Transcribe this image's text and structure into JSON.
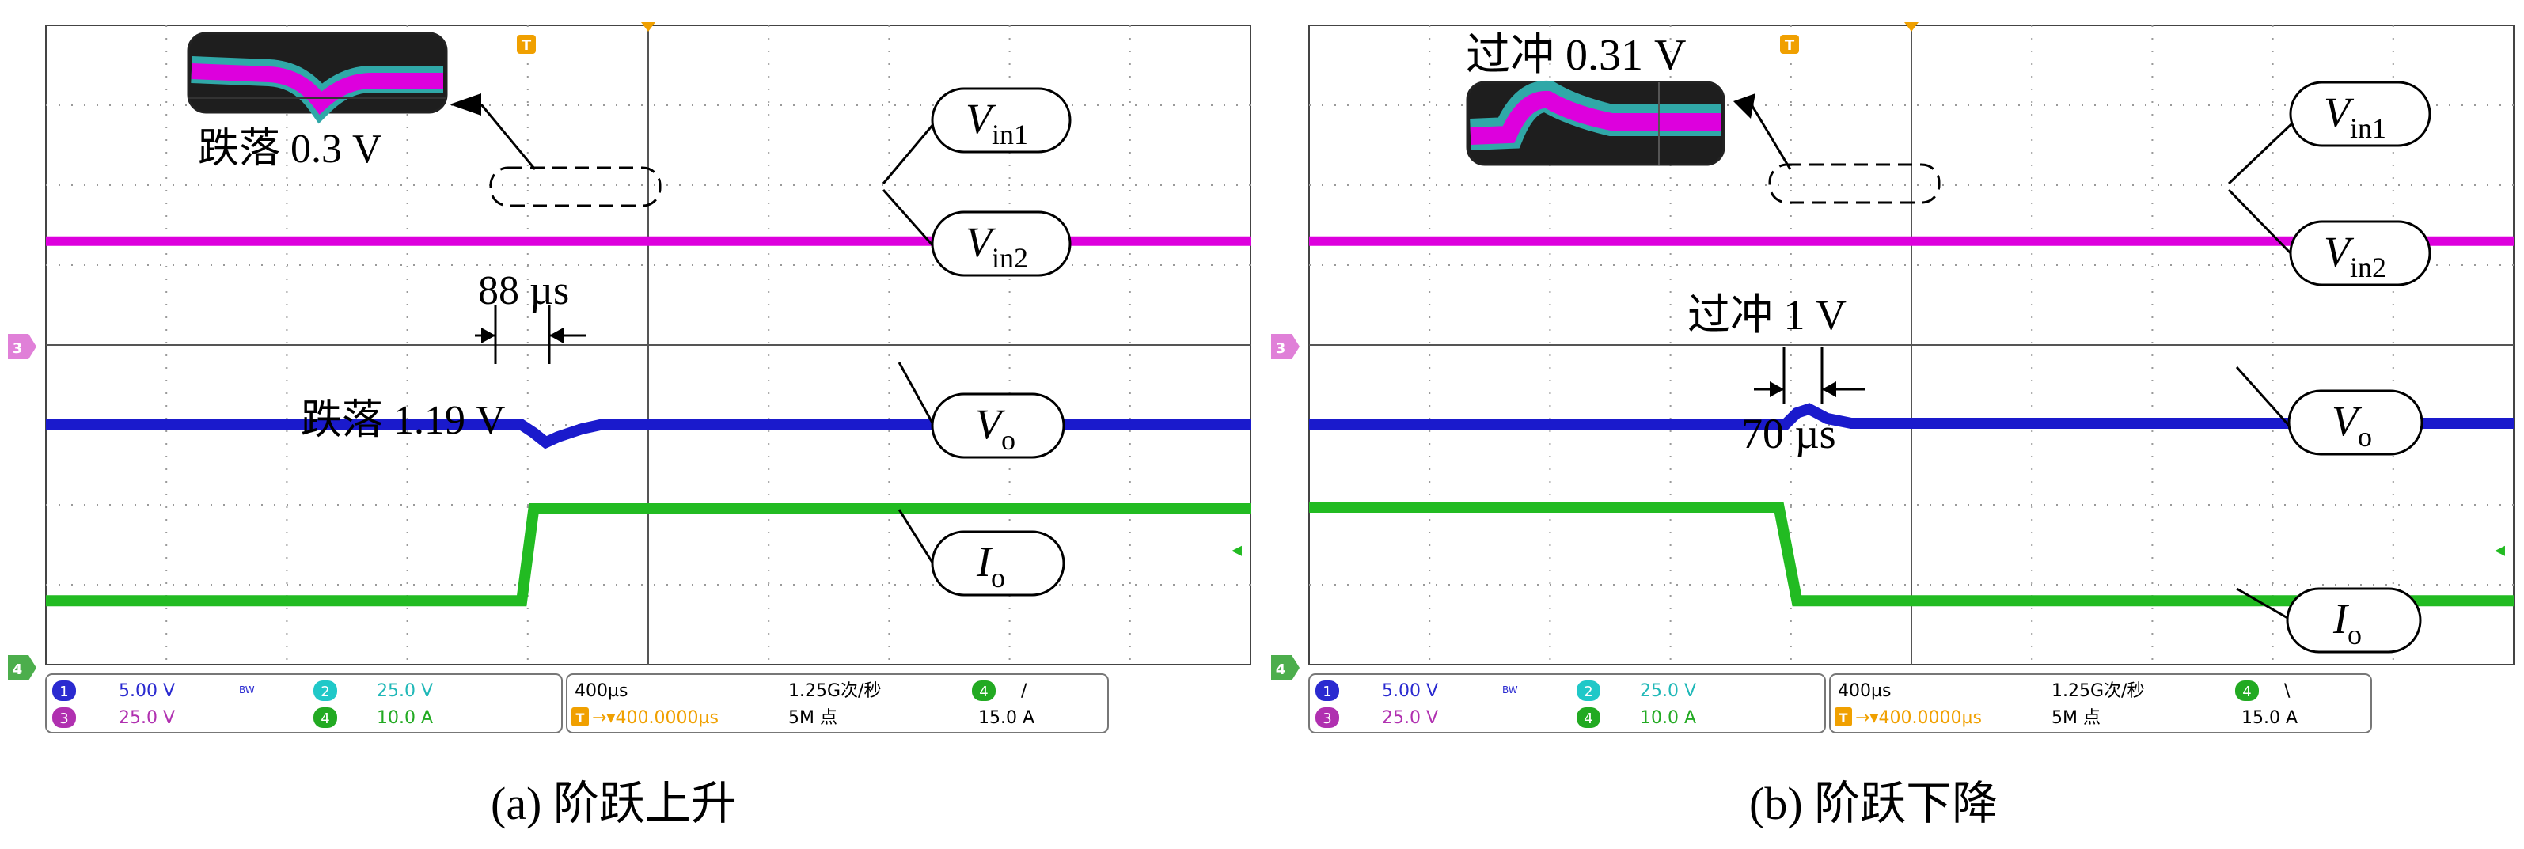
{
  "chart_data": [
    {
      "type": "line",
      "title": "",
      "caption": "(a) 阶跃上升",
      "x_unit": "µs",
      "time_per_div_us": 400,
      "divisions": {
        "x": 10,
        "y": 8
      },
      "grid": true,
      "series": [
        {
          "name": "Vin1",
          "channel": 3,
          "color": "#dd00dd",
          "volts_per_div": 25.0,
          "points_div": [
            [
              0,
              5.3
            ],
            [
              10,
              5.3
            ]
          ]
        },
        {
          "name": "Vin2",
          "channel": 3,
          "color": "#dd00dd",
          "volts_per_div": 25.0,
          "points_div": [
            [
              0,
              5.29
            ],
            [
              10,
              5.29
            ]
          ]
        },
        {
          "name": "Vo",
          "channel": 1,
          "color": "#1a1acc",
          "volts_per_div": 5.0,
          "points_div": [
            [
              0,
              3.0
            ],
            [
              3.95,
              3.0
            ],
            [
              4.05,
              2.9
            ],
            [
              4.15,
              2.78
            ],
            [
              4.25,
              2.85
            ],
            [
              4.45,
              2.95
            ],
            [
              4.6,
              3.0
            ],
            [
              10,
              3.0
            ]
          ]
        },
        {
          "name": "Io",
          "channel": 4,
          "color": "#22bb22",
          "amps_per_div": 10.0,
          "points_div": [
            [
              0,
              0.8
            ],
            [
              3.95,
              0.8
            ],
            [
              4.05,
              1.95
            ],
            [
              10,
              1.95
            ]
          ]
        }
      ],
      "labels": [
        {
          "base": "V",
          "sub": "in1"
        },
        {
          "base": "V",
          "sub": "in2"
        },
        {
          "base": "V",
          "sub": "o"
        },
        {
          "base": "I",
          "sub": "o"
        }
      ],
      "annotations": [
        "跌落 0.3 V",
        "88 µs",
        "跌落 1.19 V"
      ],
      "status": {
        "ch1": "5.00 V",
        "ch2": "25.0 V",
        "ch3": "25.0 V",
        "ch4": "10.0 A",
        "bw": "BW",
        "timebase": "400µs",
        "position": "400.0000µs",
        "sample_rate": "1.25G次/秒",
        "record": "5M 点",
        "trigger_ch": "4",
        "trigger_slope": "/",
        "trigger_level": "15.0 A"
      }
    },
    {
      "type": "line",
      "title": "",
      "caption": "(b) 阶跃下降",
      "x_unit": "µs",
      "time_per_div_us": 400,
      "divisions": {
        "x": 10,
        "y": 8
      },
      "grid": true,
      "series": [
        {
          "name": "Vin1",
          "channel": 3,
          "color": "#dd00dd",
          "volts_per_div": 25.0,
          "points_div": [
            [
              0,
              5.3
            ],
            [
              10,
              5.3
            ]
          ]
        },
        {
          "name": "Vin2",
          "channel": 3,
          "color": "#dd00dd",
          "volts_per_div": 25.0,
          "points_div": [
            [
              0,
              5.29
            ],
            [
              10,
              5.29
            ]
          ]
        },
        {
          "name": "Vo",
          "channel": 1,
          "color": "#1a1acc",
          "volts_per_div": 5.0,
          "points_div": [
            [
              0,
              3.0
            ],
            [
              3.95,
              3.0
            ],
            [
              4.05,
              3.15
            ],
            [
              4.15,
              3.2
            ],
            [
              4.3,
              3.08
            ],
            [
              4.5,
              3.02
            ],
            [
              10,
              3.02
            ]
          ]
        },
        {
          "name": "Io",
          "channel": 4,
          "color": "#22bb22",
          "amps_per_div": 10.0,
          "points_div": [
            [
              0,
              1.97
            ],
            [
              3.9,
              1.97
            ],
            [
              4.05,
              0.8
            ],
            [
              10,
              0.8
            ]
          ]
        }
      ],
      "labels": [
        {
          "base": "V",
          "sub": "in1"
        },
        {
          "base": "V",
          "sub": "in2"
        },
        {
          "base": "V",
          "sub": "o"
        },
        {
          "base": "I",
          "sub": "o"
        }
      ],
      "annotations": [
        "过冲 0.31 V",
        "过冲 1 V",
        "70 µs"
      ],
      "status": {
        "ch1": "5.00 V",
        "ch2": "25.0 V",
        "ch3": "25.0 V",
        "ch4": "10.0 A",
        "bw": "BW",
        "timebase": "400µs",
        "position": "400.0000µs",
        "sample_rate": "1.25G次/秒",
        "record": "5M 点",
        "trigger_ch": "4",
        "trigger_slope": "\\",
        "trigger_level": "15.0 A"
      }
    }
  ],
  "colors": {
    "magenta": "#dd00dd",
    "blue": "#1a1acc",
    "green": "#22bb22",
    "cyan": "#20c8c8",
    "grid": "#9a9a9a",
    "orange": "#f0a000"
  },
  "markers": {
    "ch3_tag": "3",
    "ch4_tag": "4",
    "trigger_tag": "T",
    "arrow": "◂"
  }
}
